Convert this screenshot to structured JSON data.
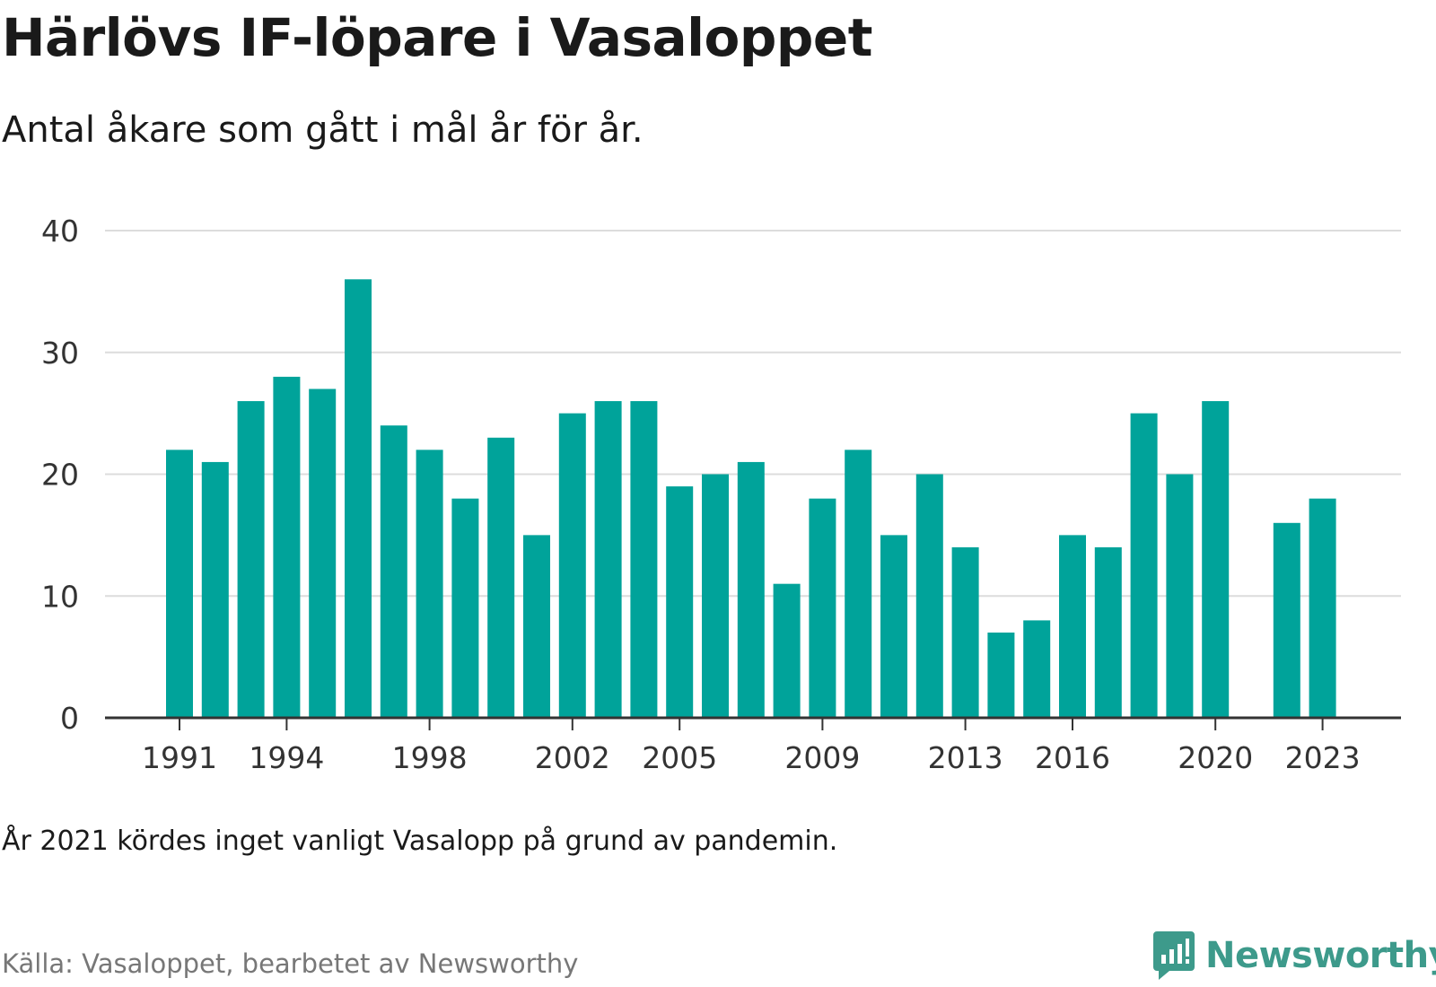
{
  "header": {
    "title": "Härlövs IF-löpare i Vasaloppet",
    "subtitle": "Antal åkare som gått i mål år för år."
  },
  "footer": {
    "note": "År 2021 kördes inget vanligt Vasalopp på grund av pandemin.",
    "source": "Källa: Vasaloppet, bearbetet av Newsworthy",
    "brand": "Newsworthy"
  },
  "colors": {
    "bar": "#00a39a",
    "grid": "#dcdcdc",
    "axis": "#333333",
    "tick_text": "#333333",
    "brand": "#3d9a8b"
  },
  "chart_data": {
    "type": "bar",
    "title": "Härlövs IF-löpare i Vasaloppet",
    "subtitle": "Antal åkare som gått i mål år för år.",
    "categories": [
      1991,
      1992,
      1993,
      1994,
      1995,
      1996,
      1997,
      1998,
      1999,
      2000,
      2001,
      2002,
      2003,
      2004,
      2005,
      2006,
      2007,
      2008,
      2009,
      2010,
      2011,
      2012,
      2013,
      2014,
      2015,
      2016,
      2017,
      2018,
      2019,
      2020,
      2021,
      2022,
      2023
    ],
    "values": [
      22,
      21,
      26,
      28,
      27,
      36,
      24,
      22,
      18,
      23,
      15,
      25,
      26,
      26,
      19,
      20,
      21,
      11,
      18,
      22,
      15,
      20,
      14,
      7,
      8,
      15,
      14,
      25,
      20,
      26,
      null,
      16,
      18
    ],
    "x_tick_labels": [
      "1991",
      "1994",
      "1998",
      "2002",
      "2005",
      "2009",
      "2013",
      "2016",
      "2020",
      "2023"
    ],
    "y_ticks": [
      0,
      10,
      20,
      30,
      40
    ],
    "ylim": [
      0,
      40
    ],
    "grid": true,
    "legend": "none"
  }
}
